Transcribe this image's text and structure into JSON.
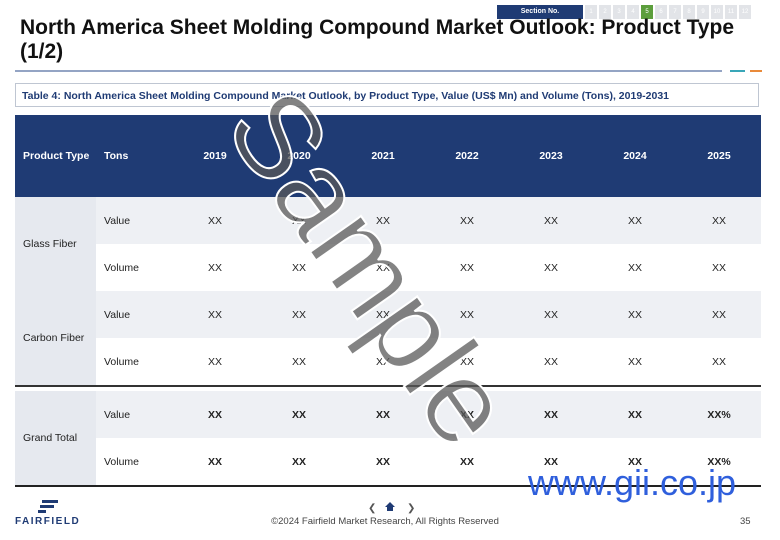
{
  "header": {
    "section_label": "Section No.",
    "sections": [
      "1",
      "2",
      "3",
      "4",
      "5",
      "6",
      "7",
      "8",
      "9",
      "10",
      "11",
      "12"
    ],
    "current_section": "5",
    "title": "North America Sheet Molding Compound Market Outlook: Product Type (1/2)"
  },
  "table": {
    "caption": "Table 4: North America Sheet Molding Compound Market Outlook, by Product Type, Value (US$ Mn) and Volume (Tons), 2019-2031",
    "header": [
      "Product Type",
      "Tons",
      "2019",
      "2020",
      "2021",
      "2022",
      "2023",
      "2024",
      "2025"
    ],
    "groups": [
      {
        "name": "Glass Fiber",
        "rows": [
          [
            "Value",
            "XX",
            "XX",
            "XX",
            "XX",
            "XX",
            "XX",
            "XX"
          ],
          [
            "Volume",
            "XX",
            "XX",
            "XX",
            "XX",
            "XX",
            "XX",
            "XX"
          ]
        ]
      },
      {
        "name": "Carbon Fiber",
        "rows": [
          [
            "Value",
            "XX",
            "XX",
            "XX",
            "XX",
            "XX",
            "XX",
            "XX"
          ],
          [
            "Volume",
            "XX",
            "XX",
            "XX",
            "XX",
            "XX",
            "XX",
            "XX"
          ]
        ]
      },
      {
        "name": "Grand Total",
        "bold": true,
        "rows": [
          [
            "Value",
            "XX",
            "XX",
            "XX",
            "XX",
            "XX",
            "XX",
            "XX%"
          ],
          [
            "Volume",
            "XX",
            "XX",
            "XX",
            "XX",
            "XX",
            "XX",
            "XX%"
          ]
        ]
      }
    ]
  },
  "watermark": "Sample",
  "site": "www.gii.co.jp",
  "footer": {
    "logo": "FAIRFIELD",
    "copyright": "©2024 Fairfield Market Research, All Rights Reserved",
    "page": "35"
  }
}
